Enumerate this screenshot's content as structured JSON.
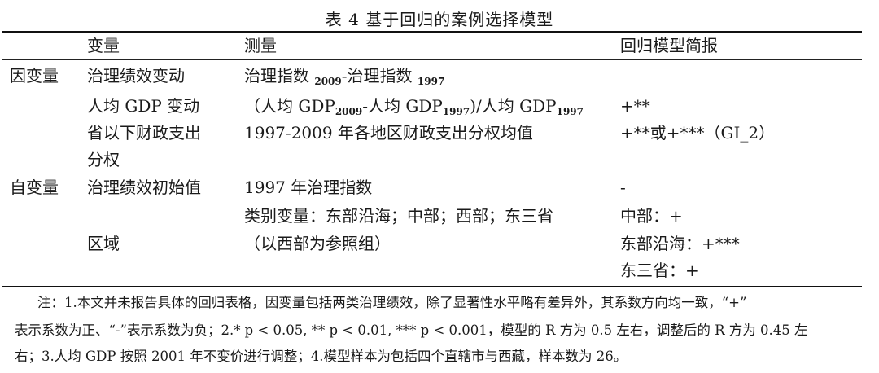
{
  "caption": "表 4  基于回归的案例选择模型",
  "header": {
    "col_variable": "变量",
    "col_measure": "测量",
    "col_report": "回归模型简报"
  },
  "dependent": {
    "group_label": "因变量",
    "variable": "治理绩效变动",
    "measure_a": "治理指数 ",
    "measure_a_sub": "2009",
    "measure_b": "-治理指数 ",
    "measure_b_sub": "1997"
  },
  "independent": {
    "group_label": "自变量",
    "rows": [
      {
        "variable": "人均 GDP 变动",
        "measure_p1": "（人均 GDP",
        "measure_sub1": "2009",
        "measure_p2": "-人均 GDP",
        "measure_sub2": "1997",
        "measure_p3": ")/人均 GDP",
        "measure_sub3": "1997",
        "report": "+**"
      },
      {
        "variable_line1": "省以下财政支出",
        "variable_line2": "分权",
        "measure": "1997-2009 年各地区财政支出分权均值",
        "report": "+**或+***（GI_2）"
      },
      {
        "variable": "治理绩效初始值",
        "measure": "1997 年治理指数",
        "report": "-"
      },
      {
        "variable": "区域",
        "measure_line1": "类别变量：东部沿海；中部；西部；东三省",
        "measure_line2": "（以西部为参照组）",
        "report_line1": "中部：+",
        "report_line2": "东部沿海：+***",
        "report_line3": "东三省：+"
      }
    ]
  },
  "notes": {
    "line1": "注：1.本文并未报告具体的回归表格，因变量包括两类治理绩效，除了显著性水平略有差异外，其系数方向均一致，“+”",
    "line2": "表示系数为正、“-”表示系数为负；2.* p < 0.05, ** p < 0.01, *** p < 0.001，模型的 R 方为 0.5 左右，调整后的 R 方为 0.45 左",
    "line3": "右；3.人均 GDP 按照 2001 年不变价进行调整；4.模型样本为包括四个直辖市与西藏，样本数为 26。"
  }
}
